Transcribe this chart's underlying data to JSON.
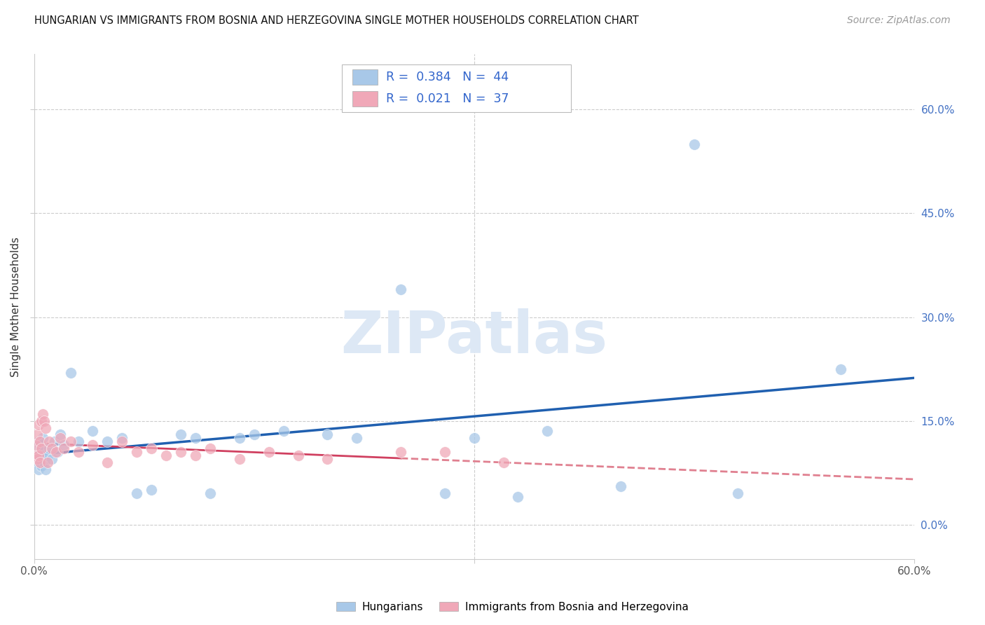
{
  "title": "HUNGARIAN VS IMMIGRANTS FROM BOSNIA AND HERZEGOVINA SINGLE MOTHER HOUSEHOLDS CORRELATION CHART",
  "source": "Source: ZipAtlas.com",
  "ylabel": "Single Mother Households",
  "legend_label1": "Hungarians",
  "legend_label2": "Immigrants from Bosnia and Herzegovina",
  "color_hungarian": "#A8C8E8",
  "color_bosnian": "#F0A8B8",
  "color_trend_hungarian": "#2060B0",
  "color_trend_bosnian_solid": "#D04060",
  "color_trend_bosnian_dashed": "#E08090",
  "watermark_color": "#DDE8F5",
  "xlim": [
    0,
    60
  ],
  "ylim": [
    -5,
    68
  ],
  "hun_x": [
    0.1,
    0.2,
    0.2,
    0.3,
    0.3,
    0.4,
    0.4,
    0.5,
    0.5,
    0.6,
    0.6,
    0.7,
    0.8,
    0.9,
    1.0,
    1.2,
    1.4,
    1.6,
    1.8,
    2.0,
    2.5,
    3.0,
    4.0,
    5.0,
    6.0,
    7.0,
    8.0,
    10.0,
    11.0,
    12.0,
    14.0,
    15.0,
    17.0,
    20.0,
    22.0,
    25.0,
    28.0,
    30.0,
    33.0,
    35.0,
    40.0,
    45.0,
    48.0,
    55.0
  ],
  "hun_y": [
    10.0,
    9.0,
    11.0,
    8.0,
    12.0,
    10.5,
    9.5,
    11.5,
    8.5,
    12.5,
    10.0,
    9.0,
    8.0,
    10.0,
    11.0,
    9.5,
    12.0,
    10.5,
    13.0,
    11.5,
    22.0,
    12.0,
    13.5,
    12.0,
    12.5,
    4.5,
    5.0,
    13.0,
    12.5,
    4.5,
    12.5,
    13.0,
    13.5,
    13.0,
    12.5,
    34.0,
    4.5,
    12.5,
    4.0,
    13.5,
    5.5,
    55.0,
    4.5,
    22.5
  ],
  "bos_x": [
    0.1,
    0.1,
    0.2,
    0.2,
    0.3,
    0.3,
    0.4,
    0.4,
    0.5,
    0.5,
    0.6,
    0.7,
    0.8,
    0.9,
    1.0,
    1.2,
    1.5,
    1.8,
    2.0,
    2.5,
    3.0,
    4.0,
    5.0,
    6.0,
    7.0,
    8.0,
    9.0,
    10.0,
    11.0,
    12.0,
    14.0,
    16.0,
    18.0,
    20.0,
    25.0,
    28.0,
    32.0
  ],
  "bos_y": [
    10.0,
    11.5,
    9.5,
    13.0,
    10.0,
    14.5,
    12.0,
    9.0,
    15.0,
    11.0,
    16.0,
    15.0,
    14.0,
    9.0,
    12.0,
    11.0,
    10.5,
    12.5,
    11.0,
    12.0,
    10.5,
    11.5,
    9.0,
    12.0,
    10.5,
    11.0,
    10.0,
    10.5,
    10.0,
    11.0,
    9.5,
    10.5,
    10.0,
    9.5,
    10.5,
    10.5,
    9.0
  ]
}
